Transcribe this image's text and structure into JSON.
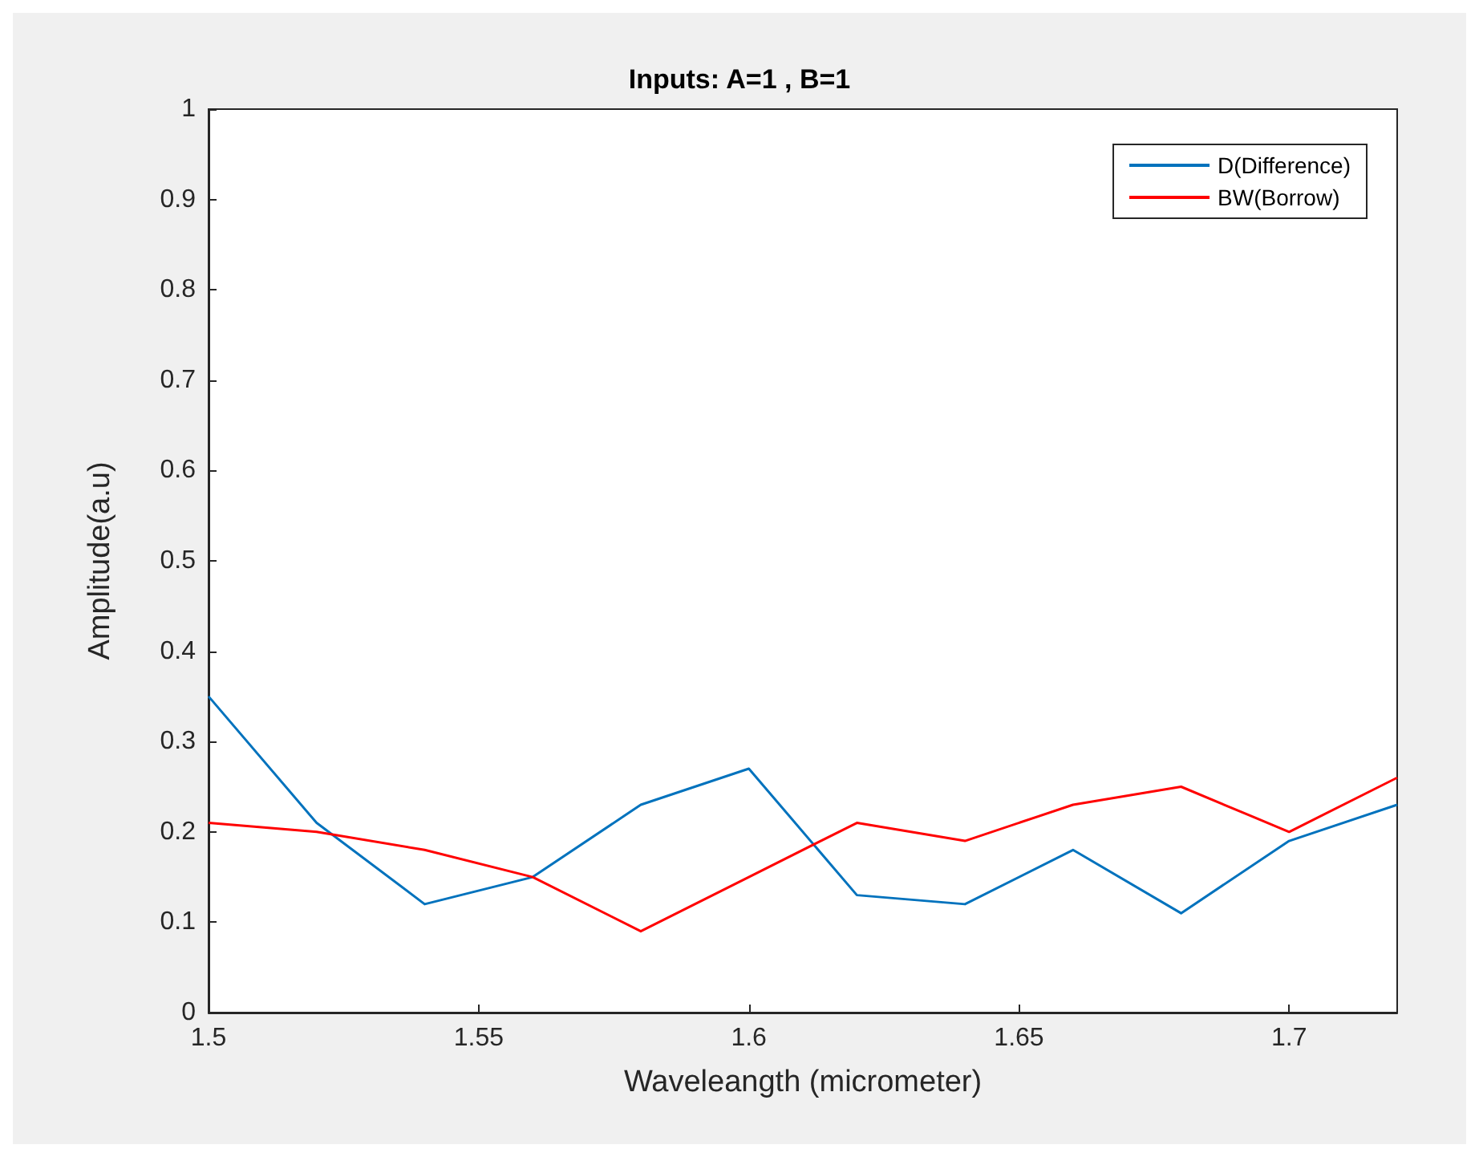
{
  "chart_data": {
    "type": "line",
    "title": "Inputs: A=1 , B=1",
    "xlabel": "Waveleangth (micrometer)",
    "ylabel": "Amplitude(a.u)",
    "x": [
      1.5,
      1.52,
      1.54,
      1.56,
      1.58,
      1.6,
      1.62,
      1.64,
      1.66,
      1.68,
      1.7,
      1.72
    ],
    "series": [
      {
        "name": "D(Difference)",
        "color": "#0072bd",
        "values": [
          0.35,
          0.21,
          0.12,
          0.15,
          0.23,
          0.27,
          0.13,
          0.12,
          0.18,
          0.11,
          0.19,
          0.23
        ]
      },
      {
        "name": "BW(Borrow)",
        "color": "#ff0000",
        "values": [
          0.21,
          0.2,
          0.18,
          0.15,
          0.09,
          0.15,
          0.21,
          0.19,
          0.23,
          0.25,
          0.2,
          0.26
        ]
      }
    ],
    "xlim": [
      1.5,
      1.72
    ],
    "xticks": [
      1.5,
      1.55,
      1.6,
      1.65,
      1.7
    ],
    "ylim": [
      0,
      1
    ],
    "yticks": [
      0,
      0.1,
      0.2,
      0.3,
      0.4,
      0.5,
      0.6,
      0.7,
      0.8,
      0.9,
      1
    ],
    "grid": false,
    "legend": "top right",
    "marker": "none",
    "line_style": "solid"
  }
}
